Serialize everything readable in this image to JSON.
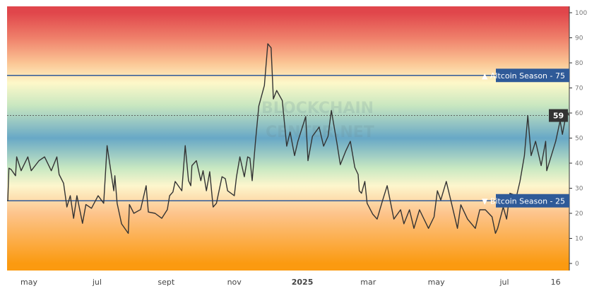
{
  "chart_data": {
    "type": "line",
    "title": "",
    "xlabel": "",
    "ylabel": "",
    "ylim": [
      0,
      100
    ],
    "yticks": [
      0,
      10,
      20,
      30,
      40,
      50,
      60,
      70,
      80,
      90,
      100
    ],
    "xticks": [
      {
        "date": "2024-05-01",
        "label": "may"
      },
      {
        "date": "2024-07-01",
        "label": "jul"
      },
      {
        "date": "2024-09-01",
        "label": "sept"
      },
      {
        "date": "2024-11-01",
        "label": "nov"
      },
      {
        "date": "2025-01-01",
        "label": "2025",
        "bold": true
      },
      {
        "date": "2025-03-01",
        "label": "mar"
      },
      {
        "date": "2025-05-01",
        "label": "may"
      },
      {
        "date": "2025-07-01",
        "label": "jul"
      },
      {
        "date": "2025-08-16",
        "label": "16"
      }
    ],
    "xlim": [
      "2024-04-11",
      "2025-08-28"
    ],
    "grid": false,
    "background_gradient": [
      {
        "value": 100,
        "color": "#e0464b"
      },
      {
        "value": 90,
        "color": "#ef7f6a"
      },
      {
        "value": 80,
        "color": "#fbc594"
      },
      {
        "value": 72,
        "color": "#fdf8c9"
      },
      {
        "value": 63,
        "color": "#c9e7c0"
      },
      {
        "value": 50,
        "color": "#68a8c6"
      },
      {
        "value": 38,
        "color": "#c8e8c2"
      },
      {
        "value": 31,
        "color": "#fdf6cd"
      },
      {
        "value": 20,
        "color": "#fdc48c"
      },
      {
        "value": 0,
        "color": "#fb9a10"
      }
    ],
    "line_color": "#333333",
    "reference_lines": [
      {
        "value": 75,
        "label": "▲ Altcoin Season - 75",
        "color": "#2f5a98"
      },
      {
        "value": 25,
        "label": "▼ Bitcoin Season - 25",
        "color": "#2f5a98"
      }
    ],
    "current_value": {
      "value": 59,
      "label": "59",
      "color": "#333333"
    },
    "watermark": "BLOCKCHAIN CENTER.NET",
    "series": [
      {
        "points": [
          [
            "2024-04-12",
            24.8
          ],
          [
            "2024-04-13",
            38
          ],
          [
            "2024-04-15",
            37.5
          ],
          [
            "2024-04-19",
            35
          ],
          [
            "2024-04-20",
            42.5
          ],
          [
            "2024-04-24",
            37
          ],
          [
            "2024-04-30",
            42.5
          ],
          [
            "2024-05-03",
            37
          ],
          [
            "2024-05-10",
            41
          ],
          [
            "2024-05-15",
            42.5
          ],
          [
            "2024-05-21",
            37
          ],
          [
            "2024-05-26",
            42.5
          ],
          [
            "2024-05-28",
            35.5
          ],
          [
            "2024-06-01",
            32
          ],
          [
            "2024-06-04",
            22.5
          ],
          [
            "2024-06-07",
            27
          ],
          [
            "2024-06-10",
            18
          ],
          [
            "2024-06-13",
            27
          ],
          [
            "2024-06-18",
            16
          ],
          [
            "2024-06-21",
            23.5
          ],
          [
            "2024-06-26",
            22
          ],
          [
            "2024-07-02",
            27
          ],
          [
            "2024-07-07",
            24
          ],
          [
            "2024-07-10",
            47
          ],
          [
            "2024-07-13",
            38
          ],
          [
            "2024-07-16",
            29
          ],
          [
            "2024-07-17",
            35
          ],
          [
            "2024-07-19",
            24
          ],
          [
            "2024-07-23",
            15.8
          ],
          [
            "2024-07-29",
            12
          ],
          [
            "2024-07-30",
            23.5
          ],
          [
            "2024-08-03",
            20
          ],
          [
            "2024-08-09",
            21.5
          ],
          [
            "2024-08-14",
            31
          ],
          [
            "2024-08-16",
            20.5
          ],
          [
            "2024-08-22",
            20
          ],
          [
            "2024-08-28",
            18
          ],
          [
            "2024-09-02",
            21.5
          ],
          [
            "2024-09-04",
            27
          ],
          [
            "2024-09-07",
            28.5
          ],
          [
            "2024-09-09",
            32.7
          ],
          [
            "2024-09-15",
            29
          ],
          [
            "2024-09-18",
            47
          ],
          [
            "2024-09-21",
            33
          ],
          [
            "2024-09-23",
            31
          ],
          [
            "2024-09-24",
            39
          ],
          [
            "2024-09-28",
            41
          ],
          [
            "2024-10-02",
            33
          ],
          [
            "2024-10-04",
            37
          ],
          [
            "2024-10-07",
            29
          ],
          [
            "2024-10-10",
            36.6
          ],
          [
            "2024-10-13",
            22.5
          ],
          [
            "2024-10-16",
            24
          ],
          [
            "2024-10-21",
            34.6
          ],
          [
            "2024-10-24",
            33.8
          ],
          [
            "2024-10-26",
            29
          ],
          [
            "2024-11-01",
            27
          ],
          [
            "2024-11-03",
            34.6
          ],
          [
            "2024-11-06",
            42.5
          ],
          [
            "2024-11-10",
            34.6
          ],
          [
            "2024-11-13",
            42.5
          ],
          [
            "2024-11-15",
            42
          ],
          [
            "2024-11-17",
            33
          ],
          [
            "2024-11-20",
            48.7
          ],
          [
            "2024-11-23",
            62.8
          ],
          [
            "2024-11-28",
            71
          ],
          [
            "2024-12-01",
            87.6
          ],
          [
            "2024-12-04",
            86
          ],
          [
            "2024-12-06",
            65.6
          ],
          [
            "2024-12-09",
            69
          ],
          [
            "2024-12-14",
            65
          ],
          [
            "2024-12-18",
            46.8
          ],
          [
            "2024-12-21",
            52.4
          ],
          [
            "2024-12-25",
            43
          ],
          [
            "2024-12-28",
            48.7
          ],
          [
            "2025-01-04",
            58.6
          ],
          [
            "2025-01-06",
            41
          ],
          [
            "2025-01-10",
            50.7
          ],
          [
            "2025-01-16",
            54.4
          ],
          [
            "2025-01-20",
            46.8
          ],
          [
            "2025-01-24",
            50.7
          ],
          [
            "2025-01-27",
            61
          ],
          [
            "2025-02-01",
            48
          ],
          [
            "2025-02-04",
            39.4
          ],
          [
            "2025-02-09",
            45
          ],
          [
            "2025-02-13",
            48.7
          ],
          [
            "2025-02-17",
            38.3
          ],
          [
            "2025-02-20",
            35.5
          ],
          [
            "2025-02-21",
            29
          ],
          [
            "2025-02-23",
            28
          ],
          [
            "2025-02-26",
            32.7
          ],
          [
            "2025-02-28",
            24
          ],
          [
            "2025-03-05",
            19.7
          ],
          [
            "2025-03-09",
            17.7
          ],
          [
            "2025-03-14",
            25.3
          ],
          [
            "2025-03-18",
            31
          ],
          [
            "2025-03-24",
            17.7
          ],
          [
            "2025-03-30",
            21.4
          ],
          [
            "2025-04-02",
            15.8
          ],
          [
            "2025-04-07",
            21.4
          ],
          [
            "2025-04-11",
            14
          ],
          [
            "2025-04-16",
            21.4
          ],
          [
            "2025-04-19",
            18.6
          ],
          [
            "2025-04-24",
            14
          ],
          [
            "2025-04-29",
            18.6
          ],
          [
            "2025-05-02",
            29
          ],
          [
            "2025-05-05",
            25.3
          ],
          [
            "2025-05-10",
            32.7
          ],
          [
            "2025-05-15",
            23.4
          ],
          [
            "2025-05-20",
            14
          ],
          [
            "2025-05-23",
            23.4
          ],
          [
            "2025-05-29",
            17.7
          ],
          [
            "2025-06-05",
            14
          ],
          [
            "2025-06-09",
            21.4
          ],
          [
            "2025-06-14",
            21.4
          ],
          [
            "2025-06-20",
            18.6
          ],
          [
            "2025-06-23",
            12
          ],
          [
            "2025-06-25",
            14
          ],
          [
            "2025-06-30",
            22.5
          ],
          [
            "2025-07-03",
            17.7
          ],
          [
            "2025-07-06",
            28
          ],
          [
            "2025-07-12",
            27
          ],
          [
            "2025-07-15",
            32.7
          ],
          [
            "2025-07-19",
            43
          ],
          [
            "2025-07-22",
            59
          ],
          [
            "2025-07-25",
            43
          ],
          [
            "2025-07-29",
            48.7
          ],
          [
            "2025-08-03",
            39
          ],
          [
            "2025-08-07",
            48.7
          ],
          [
            "2025-08-08",
            37
          ],
          [
            "2025-08-16",
            48.7
          ],
          [
            "2025-08-20",
            57
          ],
          [
            "2025-08-22",
            51.5
          ],
          [
            "2025-08-26",
            61
          ],
          [
            "2025-08-28",
            59
          ]
        ]
      }
    ]
  }
}
